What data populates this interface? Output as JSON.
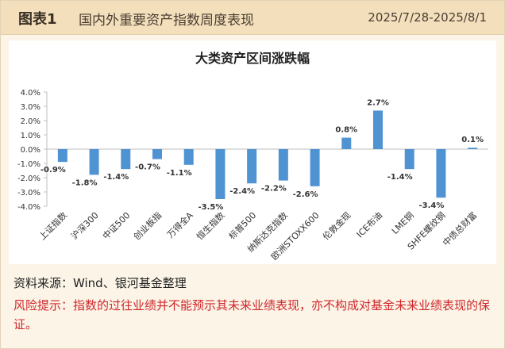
{
  "header": {
    "figure_label": "图表1",
    "title": "国内外重要资产指数周度表现",
    "date_range": "2025/7/28-2025/8/1"
  },
  "footer": {
    "source": "资料来源：Wind、银河基金整理",
    "risk": "风险提示：指数的过往业绩并不能预示其未来业绩表现，亦不构成对基金未来业绩表现的保证。"
  },
  "colors": {
    "bar": "#4f93d2",
    "header_bg": "#f3dfbb",
    "risk_text": "#d0272c"
  },
  "chart_data": {
    "type": "bar",
    "title": "大类资产区间涨跌幅",
    "xlabel": "",
    "ylabel": "",
    "categories": [
      "上证指数",
      "沪深300",
      "中证500",
      "创业板指",
      "万得全A",
      "恒生指数",
      "标普500",
      "纳斯达克指数",
      "欧洲STOXX600",
      "伦敦金现",
      "ICE布油",
      "LME铜",
      "SHFE螺纹钢",
      "中债总财富"
    ],
    "values": [
      -0.9,
      -1.8,
      -1.4,
      -0.7,
      -1.1,
      -3.5,
      -2.4,
      -2.2,
      -2.6,
      0.8,
      2.7,
      -1.4,
      -3.4,
      0.1
    ],
    "data_labels": [
      "-0.9%",
      "-1.8%",
      "-1.4%",
      "-0.7%",
      "-1.1%",
      "-3.5%",
      "-2.4%",
      "-2.2%",
      "-2.6%",
      "0.8%",
      "2.7%",
      "-1.4%",
      "-3.4%",
      "0.1%"
    ],
    "ylim": [
      -4.0,
      4.0
    ],
    "yticks": [
      4.0,
      3.0,
      2.0,
      1.0,
      0.0,
      -1.0,
      -2.0,
      -3.0,
      -4.0
    ],
    "ytick_labels": [
      "4.0%",
      "3.0%",
      "2.0%",
      "1.0%",
      "0.0%",
      "-1.0%",
      "-2.0%",
      "-3.0%",
      "-4.0%"
    ],
    "grid": false,
    "legend": "none"
  }
}
